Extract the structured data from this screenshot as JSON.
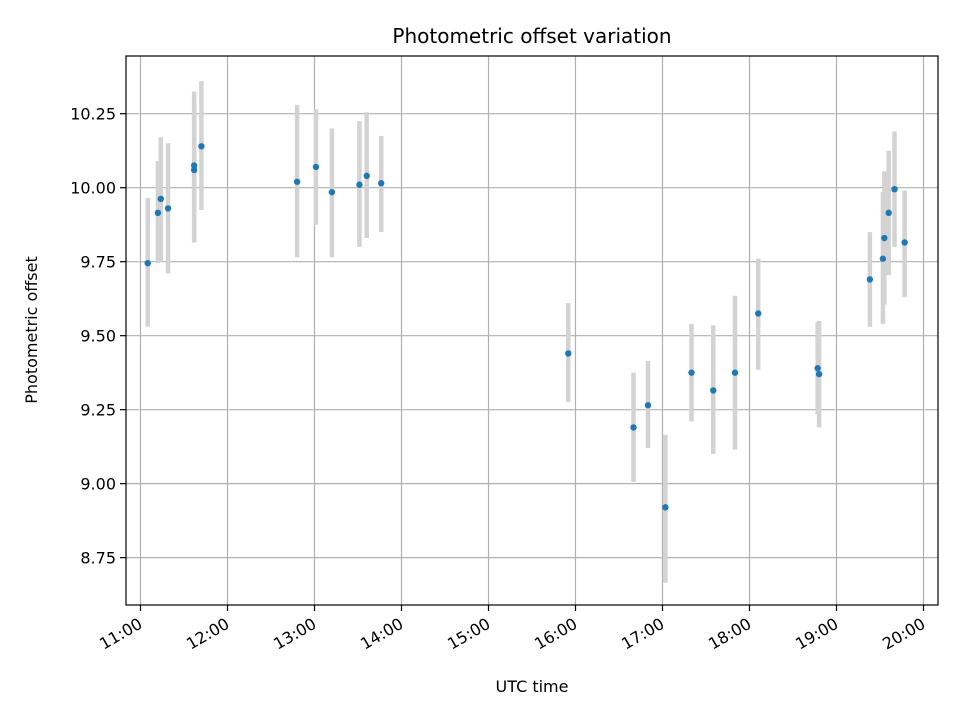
{
  "chart_data": {
    "type": "scatter",
    "title": "Photometric offset variation",
    "xlabel": "UTC time",
    "ylabel": "Photometric offset",
    "xlim": [
      "10:50",
      "20:10"
    ],
    "ylim": [
      8.59,
      10.445
    ],
    "x_ticks": [
      "11:00",
      "12:00",
      "13:00",
      "14:00",
      "15:00",
      "16:00",
      "17:00",
      "18:00",
      "19:00",
      "20:00"
    ],
    "y_ticks": [
      8.75,
      9.0,
      9.25,
      9.5,
      9.75,
      10.0,
      10.25
    ],
    "y_tick_labels": [
      "8.75",
      "9.00",
      "9.25",
      "9.50",
      "9.75",
      "10.00",
      "10.25"
    ],
    "grid": true,
    "legend": "none",
    "point_color": "#1f77b4",
    "errorbar_color": "#d3d3d3",
    "points": [
      {
        "time": "11:05",
        "y": 9.745,
        "err_low": 9.53,
        "err_high": 9.965
      },
      {
        "time": "11:12",
        "y": 9.915,
        "err_low": 9.745,
        "err_high": 10.09
      },
      {
        "time": "11:14",
        "y": 9.962,
        "err_low": 9.75,
        "err_high": 10.17
      },
      {
        "time": "11:19",
        "y": 9.93,
        "err_low": 9.71,
        "err_high": 10.15
      },
      {
        "time": "11:37",
        "y": 10.075,
        "err_low": 9.815,
        "err_high": 10.325
      },
      {
        "time": "11:37",
        "y": 10.06,
        "err_low": 9.82,
        "err_high": 10.3
      },
      {
        "time": "11:42",
        "y": 10.14,
        "err_low": 9.925,
        "err_high": 10.36
      },
      {
        "time": "12:48",
        "y": 10.02,
        "err_low": 9.765,
        "err_high": 10.28
      },
      {
        "time": "13:01",
        "y": 10.07,
        "err_low": 9.875,
        "err_high": 10.265
      },
      {
        "time": "13:12",
        "y": 9.985,
        "err_low": 9.765,
        "err_high": 10.2
      },
      {
        "time": "13:31",
        "y": 10.01,
        "err_low": 9.8,
        "err_high": 10.225
      },
      {
        "time": "13:36",
        "y": 10.04,
        "err_low": 9.83,
        "err_high": 10.255
      },
      {
        "time": "13:46",
        "y": 10.015,
        "err_low": 9.85,
        "err_high": 10.175
      },
      {
        "time": "15:55",
        "y": 9.44,
        "err_low": 9.275,
        "err_high": 9.61
      },
      {
        "time": "16:40",
        "y": 9.19,
        "err_low": 9.005,
        "err_high": 9.375
      },
      {
        "time": "16:50",
        "y": 9.265,
        "err_low": 9.12,
        "err_high": 9.415
      },
      {
        "time": "17:02",
        "y": 8.92,
        "err_low": 8.665,
        "err_high": 9.165
      },
      {
        "time": "17:20",
        "y": 9.375,
        "err_low": 9.21,
        "err_high": 9.54
      },
      {
        "time": "17:35",
        "y": 9.315,
        "err_low": 9.1,
        "err_high": 9.535
      },
      {
        "time": "17:50",
        "y": 9.375,
        "err_low": 9.115,
        "err_high": 9.635
      },
      {
        "time": "18:06",
        "y": 9.575,
        "err_low": 9.385,
        "err_high": 9.76
      },
      {
        "time": "18:47",
        "y": 9.39,
        "err_low": 9.235,
        "err_high": 9.545
      },
      {
        "time": "18:48",
        "y": 9.37,
        "err_low": 9.19,
        "err_high": 9.55
      },
      {
        "time": "19:23",
        "y": 9.69,
        "err_low": 9.53,
        "err_high": 9.85
      },
      {
        "time": "19:32",
        "y": 9.76,
        "err_low": 9.54,
        "err_high": 9.985
      },
      {
        "time": "19:33",
        "y": 9.83,
        "err_low": 9.605,
        "err_high": 10.055
      },
      {
        "time": "19:36",
        "y": 9.915,
        "err_low": 9.705,
        "err_high": 10.125
      },
      {
        "time": "19:40",
        "y": 9.995,
        "err_low": 9.8,
        "err_high": 10.19
      },
      {
        "time": "19:47",
        "y": 9.815,
        "err_low": 9.63,
        "err_high": 9.99
      }
    ]
  }
}
